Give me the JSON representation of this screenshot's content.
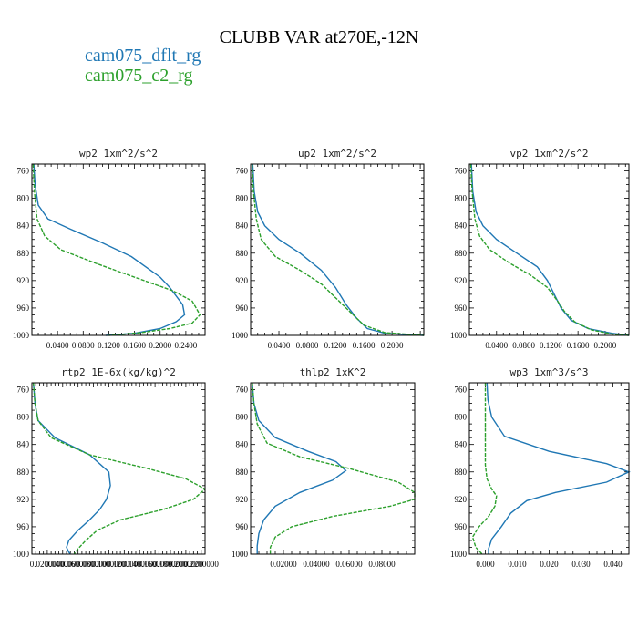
{
  "title": "CLUBB VAR at270E,-12N",
  "legend": [
    {
      "label": "cam075_dflt_rg",
      "color": "#1f77b4",
      "dash": "solid"
    },
    {
      "label": "cam075_c2_rg",
      "color": "#2ca02c",
      "dash": "dashed"
    }
  ],
  "chart_data": [
    {
      "type": "line",
      "title": "wp2  1xm^2/s^2",
      "xlim": [
        0,
        0.27
      ],
      "ylim": [
        1000,
        750
      ],
      "xticks": [
        0.04,
        0.08,
        0.12,
        0.16,
        0.2,
        0.24
      ],
      "xtick_labels": [
        "0.0400",
        "0.0800",
        "0.1200",
        "0.1600",
        "0.2000",
        "0.2400"
      ],
      "yticks": [
        760,
        800,
        840,
        880,
        920,
        960,
        1000
      ],
      "ytick_labels": [
        "760",
        "800",
        "840",
        "880",
        "920",
        "960",
        "1000"
      ],
      "series": [
        {
          "name": "cam075_dflt_rg",
          "x": [
            0.003,
            0.005,
            0.01,
            0.025,
            0.06,
            0.11,
            0.155,
            0.185,
            0.2,
            0.215,
            0.235,
            0.238,
            0.225,
            0.2,
            0.16,
            0.115
          ],
          "y": [
            750,
            780,
            810,
            830,
            845,
            865,
            885,
            905,
            915,
            930,
            955,
            970,
            980,
            990,
            997,
            1000
          ]
        },
        {
          "name": "cam075_c2_rg",
          "x": [
            0.002,
            0.004,
            0.008,
            0.02,
            0.045,
            0.1,
            0.16,
            0.22,
            0.25,
            0.262,
            0.25,
            0.215,
            0.17,
            0.12
          ],
          "y": [
            750,
            790,
            830,
            855,
            875,
            895,
            915,
            935,
            950,
            970,
            982,
            990,
            996,
            1000
          ]
        }
      ]
    },
    {
      "type": "line",
      "title": "up2  1xm^2/s^2",
      "xlim": [
        0,
        0.245
      ],
      "ylim": [
        1000,
        750
      ],
      "xticks": [
        0.04,
        0.08,
        0.12,
        0.16,
        0.2
      ],
      "xtick_labels": [
        "0.0400",
        "0.0800",
        "0.1200",
        "0.1600",
        "0.2000"
      ],
      "yticks": [
        760,
        800,
        840,
        880,
        920,
        960,
        1000
      ],
      "ytick_labels": [
        "760",
        "800",
        "840",
        "880",
        "920",
        "960",
        "1000"
      ],
      "series": [
        {
          "name": "cam075_dflt_rg",
          "x": [
            0.003,
            0.005,
            0.01,
            0.02,
            0.04,
            0.07,
            0.1,
            0.12,
            0.135,
            0.15,
            0.165,
            0.19,
            0.245
          ],
          "y": [
            750,
            790,
            820,
            840,
            860,
            880,
            905,
            930,
            955,
            975,
            990,
            997,
            1000
          ]
        },
        {
          "name": "cam075_c2_rg",
          "x": [
            0.002,
            0.004,
            0.008,
            0.015,
            0.035,
            0.07,
            0.1,
            0.12,
            0.14,
            0.16,
            0.19,
            0.245
          ],
          "y": [
            750,
            790,
            830,
            860,
            885,
            905,
            925,
            945,
            965,
            985,
            996,
            1000
          ]
        }
      ]
    },
    {
      "type": "line",
      "title": "vp2  1xm^2/s^2",
      "xlim": [
        0,
        0.235
      ],
      "ylim": [
        1000,
        750
      ],
      "xticks": [
        0.04,
        0.08,
        0.12,
        0.16,
        0.2
      ],
      "xtick_labels": [
        "0.0400",
        "0.0800",
        "0.1200",
        "0.1600",
        "0.2000"
      ],
      "yticks": [
        760,
        800,
        840,
        880,
        920,
        960,
        1000
      ],
      "ytick_labels": [
        "760",
        "800",
        "840",
        "880",
        "920",
        "960",
        "1000"
      ],
      "series": [
        {
          "name": "cam075_dflt_rg",
          "x": [
            0.003,
            0.005,
            0.01,
            0.02,
            0.04,
            0.07,
            0.1,
            0.115,
            0.125,
            0.135,
            0.15,
            0.175,
            0.21,
            0.235
          ],
          "y": [
            750,
            790,
            820,
            840,
            860,
            880,
            900,
            920,
            940,
            960,
            978,
            990,
            997,
            1000
          ]
        },
        {
          "name": "cam075_c2_rg",
          "x": [
            0.002,
            0.004,
            0.008,
            0.015,
            0.03,
            0.06,
            0.09,
            0.115,
            0.13,
            0.14,
            0.155,
            0.18,
            0.21,
            0.235
          ],
          "y": [
            750,
            790,
            830,
            855,
            875,
            895,
            912,
            930,
            950,
            965,
            980,
            992,
            998,
            1000
          ]
        }
      ]
    },
    {
      "type": "line",
      "title": "rtp2  1E-6x(kg/kg)^2",
      "xlim": [
        0,
        0.225
      ],
      "ylim": [
        1000,
        750
      ],
      "xticks": [
        0.02,
        0.04,
        0.06,
        0.08,
        0.1,
        0.12,
        0.14,
        0.16,
        0.18,
        0.2,
        0.22
      ],
      "xtick_labels": [
        "0.0200000",
        "0.0400000",
        "0.0600000",
        "0.0800000",
        "0.1000000",
        "0.1200000",
        "0.1400000",
        "0.1600000",
        "0.1800000",
        "0.2000000",
        "0.2200000"
      ],
      "yticks": [
        760,
        800,
        840,
        880,
        920,
        960,
        1000
      ],
      "ytick_labels": [
        "760",
        "800",
        "840",
        "880",
        "920",
        "960",
        "1000"
      ],
      "series": [
        {
          "name": "cam075_dflt_rg",
          "x": [
            0.002,
            0.004,
            0.008,
            0.03,
            0.075,
            0.1,
            0.102,
            0.097,
            0.088,
            0.075,
            0.06,
            0.048,
            0.045,
            0.048,
            0.05
          ],
          "y": [
            750,
            780,
            805,
            830,
            855,
            880,
            900,
            920,
            935,
            950,
            965,
            980,
            990,
            997,
            1000
          ]
        },
        {
          "name": "cam075_c2_rg",
          "x": [
            0.002,
            0.004,
            0.008,
            0.025,
            0.075,
            0.15,
            0.2,
            0.225,
            0.21,
            0.17,
            0.115,
            0.085,
            0.07,
            0.06,
            0.055
          ],
          "y": [
            750,
            780,
            805,
            830,
            855,
            875,
            890,
            905,
            920,
            935,
            950,
            965,
            980,
            992,
            1000
          ]
        }
      ]
    },
    {
      "type": "line",
      "title": "thlp2  1xK^2",
      "xlim": [
        0,
        0.1
      ],
      "ylim": [
        1000,
        750
      ],
      "xticks": [
        0.02,
        0.04,
        0.06,
        0.08
      ],
      "xtick_labels": [
        "0.02000",
        "0.04000",
        "0.06000",
        "0.08000"
      ],
      "yticks": [
        760,
        800,
        840,
        880,
        920,
        960,
        1000
      ],
      "ytick_labels": [
        "760",
        "800",
        "840",
        "880",
        "920",
        "960",
        "1000"
      ],
      "series": [
        {
          "name": "cam075_dflt_rg",
          "x": [
            0.001,
            0.002,
            0.005,
            0.015,
            0.035,
            0.052,
            0.058,
            0.05,
            0.03,
            0.015,
            0.008,
            0.005,
            0.004,
            0.004
          ],
          "y": [
            750,
            780,
            805,
            830,
            850,
            865,
            878,
            892,
            910,
            930,
            950,
            970,
            988,
            1000
          ]
        },
        {
          "name": "cam075_c2_rg",
          "x": [
            0.001,
            0.002,
            0.004,
            0.01,
            0.03,
            0.06,
            0.09,
            0.1,
            0.1,
            0.085,
            0.05,
            0.025,
            0.015,
            0.012,
            0.012
          ],
          "y": [
            750,
            780,
            810,
            838,
            858,
            875,
            895,
            910,
            920,
            930,
            945,
            960,
            975,
            990,
            1000
          ]
        }
      ]
    },
    {
      "type": "line",
      "title": "wp3  1xm^3/s^3",
      "xlim": [
        -0.005,
        0.045
      ],
      "ylim": [
        1000,
        750
      ],
      "xticks": [
        0,
        0.01,
        0.02,
        0.03,
        0.04
      ],
      "xtick_labels": [
        "0.000",
        "0.010",
        "0.020",
        "0.030",
        "0.040"
      ],
      "yticks": [
        760,
        800,
        840,
        880,
        920,
        960,
        1000
      ],
      "ytick_labels": [
        "760",
        "800",
        "840",
        "880",
        "920",
        "960",
        "1000"
      ],
      "series": [
        {
          "name": "cam075_dflt_rg",
          "x": [
            0.0005,
            0.0008,
            0.002,
            0.006,
            0.02,
            0.038,
            0.045,
            0.038,
            0.022,
            0.013,
            0.008,
            0.005,
            0.002,
            0.001,
            0.001
          ],
          "y": [
            750,
            775,
            800,
            828,
            850,
            868,
            880,
            895,
            910,
            922,
            940,
            960,
            978,
            992,
            1000
          ]
        },
        {
          "name": "cam075_c2_rg",
          "x": [
            0.0,
            0.0,
            0.0,
            0.0,
            0.0005,
            0.002,
            0.0035,
            0.003,
            0.001,
            -0.002,
            -0.004,
            -0.003,
            -0.001
          ],
          "y": [
            750,
            800,
            840,
            870,
            890,
            905,
            915,
            930,
            945,
            960,
            975,
            990,
            1000
          ]
        }
      ]
    }
  ]
}
